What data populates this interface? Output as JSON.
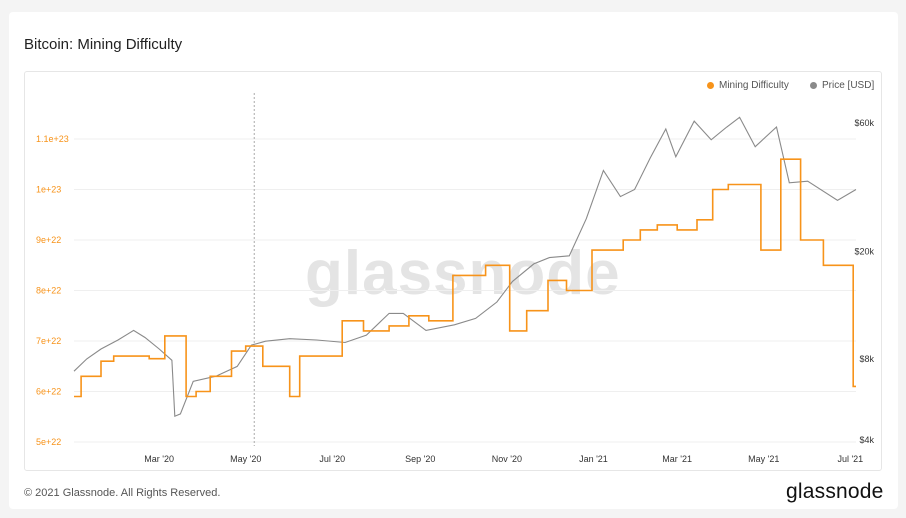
{
  "title": "Bitcoin: Mining Difficulty",
  "watermark": "glassnode",
  "brand": "glassnode",
  "copyright": "© 2021 Glassnode. All Rights Reserved.",
  "legend": [
    {
      "label": "Mining Difficulty",
      "color": "#f7931a"
    },
    {
      "label": "Price [USD]",
      "color": "#8a8a8a"
    }
  ],
  "chart_data": {
    "type": "line",
    "x_ticks": [
      "Mar '20",
      "May '20",
      "Jul '20",
      "Sep '20",
      "Nov '20",
      "Jan '21",
      "Mar '21",
      "May '21",
      "Jul '21"
    ],
    "left_axis": {
      "ticks": [
        "5e+22",
        "6e+22",
        "7e+22",
        "8e+22",
        "9e+22",
        "1e+23",
        "1.1e+23"
      ],
      "color": "#f7931a",
      "range": [
        5e+22,
        1.1e+23
      ]
    },
    "right_axis": {
      "ticks": [
        "$4k",
        "$8k",
        "$20k",
        "$60k"
      ],
      "scale": "log",
      "range": [
        4000,
        60000
      ]
    },
    "series": [
      {
        "name": "Mining Difficulty",
        "color": "#f7931a",
        "axis": "left",
        "points": [
          [
            "2020-01-01",
            5.9e+22
          ],
          [
            "2020-01-06",
            6.3e+22
          ],
          [
            "2020-01-20",
            6.6e+22
          ],
          [
            "2020-01-29",
            6.7e+22
          ],
          [
            "2020-02-23",
            6.65e+22
          ],
          [
            "2020-03-05",
            7.1e+22
          ],
          [
            "2020-03-20",
            5.9e+22
          ],
          [
            "2020-03-27",
            6e+22
          ],
          [
            "2020-04-06",
            6.3e+22
          ],
          [
            "2020-04-21",
            6.8e+22
          ],
          [
            "2020-05-01",
            6.9e+22
          ],
          [
            "2020-05-13",
            6.5e+22
          ],
          [
            "2020-06-01",
            5.9e+22
          ],
          [
            "2020-06-08",
            6.7e+22
          ],
          [
            "2020-07-08",
            7.4e+22
          ],
          [
            "2020-07-23",
            7.2e+22
          ],
          [
            "2020-08-10",
            7.3e+22
          ],
          [
            "2020-08-24",
            7.5e+22
          ],
          [
            "2020-09-07",
            7.4e+22
          ],
          [
            "2020-09-24",
            8.3e+22
          ],
          [
            "2020-10-17",
            8.5e+22
          ],
          [
            "2020-11-03",
            7.2e+22
          ],
          [
            "2020-11-15",
            7.6e+22
          ],
          [
            "2020-11-30",
            8.2e+22
          ],
          [
            "2020-12-13",
            8e+22
          ],
          [
            "2020-12-31",
            8.8e+22
          ],
          [
            "2021-01-22",
            9e+22
          ],
          [
            "2021-02-03",
            9.2e+22
          ],
          [
            "2021-02-15",
            9.3e+22
          ],
          [
            "2021-03-01",
            9.2e+22
          ],
          [
            "2021-03-15",
            9.4e+22
          ],
          [
            "2021-03-26",
            1e+23
          ],
          [
            "2021-04-06",
            1.01e+23
          ],
          [
            "2021-04-29",
            8.8e+22
          ],
          [
            "2021-05-13",
            1.06e+23
          ],
          [
            "2021-05-27",
            9e+22
          ],
          [
            "2021-06-12",
            8.5e+22
          ],
          [
            "2021-07-03",
            6.1e+22
          ],
          [
            "2021-07-05",
            6.1e+22
          ]
        ]
      },
      {
        "name": "Price [USD]",
        "color": "#8a8a8a",
        "axis": "right",
        "points": [
          [
            "2020-01-01",
            7200
          ],
          [
            "2020-01-10",
            8000
          ],
          [
            "2020-01-20",
            8700
          ],
          [
            "2020-02-01",
            9400
          ],
          [
            "2020-02-12",
            10200
          ],
          [
            "2020-02-20",
            9600
          ],
          [
            "2020-03-01",
            8700
          ],
          [
            "2020-03-10",
            7900
          ],
          [
            "2020-03-12",
            4900
          ],
          [
            "2020-03-16",
            5000
          ],
          [
            "2020-03-25",
            6600
          ],
          [
            "2020-04-10",
            6900
          ],
          [
            "2020-04-25",
            7500
          ],
          [
            "2020-05-05",
            9000
          ],
          [
            "2020-05-15",
            9300
          ],
          [
            "2020-06-01",
            9500
          ],
          [
            "2020-06-20",
            9400
          ],
          [
            "2020-07-10",
            9200
          ],
          [
            "2020-07-25",
            9800
          ],
          [
            "2020-08-10",
            11800
          ],
          [
            "2020-08-20",
            11800
          ],
          [
            "2020-09-05",
            10200
          ],
          [
            "2020-09-25",
            10700
          ],
          [
            "2020-10-10",
            11300
          ],
          [
            "2020-10-25",
            13000
          ],
          [
            "2020-11-05",
            15500
          ],
          [
            "2020-11-20",
            18000
          ],
          [
            "2020-12-01",
            19000
          ],
          [
            "2020-12-15",
            19300
          ],
          [
            "2020-12-27",
            26500
          ],
          [
            "2021-01-08",
            40000
          ],
          [
            "2021-01-20",
            32000
          ],
          [
            "2021-01-30",
            34000
          ],
          [
            "2021-02-10",
            44500
          ],
          [
            "2021-02-21",
            57000
          ],
          [
            "2021-02-28",
            45000
          ],
          [
            "2021-03-13",
            61000
          ],
          [
            "2021-03-25",
            52000
          ],
          [
            "2021-04-05",
            58000
          ],
          [
            "2021-04-14",
            63000
          ],
          [
            "2021-04-25",
            49000
          ],
          [
            "2021-05-10",
            58000
          ],
          [
            "2021-05-19",
            36000
          ],
          [
            "2021-06-01",
            36500
          ],
          [
            "2021-06-22",
            31000
          ],
          [
            "2021-07-05",
            34000
          ]
        ]
      }
    ],
    "crosshair_date": "2020-05-07",
    "grid": true,
    "legend_position": "top-right"
  }
}
